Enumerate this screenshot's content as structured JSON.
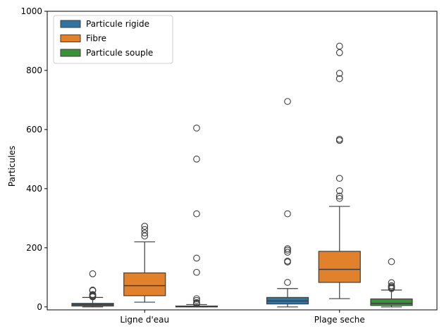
{
  "chart_data": {
    "type": "box",
    "ylabel": "Particules",
    "xlabel": "",
    "ylim": [
      -10,
      1000
    ],
    "yticks": [
      0,
      200,
      400,
      600,
      800,
      1000
    ],
    "categories": [
      "Ligne d'eau",
      "Plage seche"
    ],
    "legend_position": "top-left",
    "series": [
      {
        "name": "Particule rigide",
        "color": "#3274a1",
        "boxes": [
          {
            "category": "Ligne d'eau",
            "whisker_low": 0,
            "q1": 3,
            "median": 8,
            "q3": 12,
            "whisker_high": 32,
            "outliers": [
              112,
              57,
              55,
              42,
              40,
              38,
              35,
              34
            ]
          },
          {
            "category": "Plage seche",
            "whisker_low": 0,
            "q1": 10,
            "median": 20,
            "q3": 32,
            "whisker_high": 62,
            "outliers": [
              695,
              315,
              197,
              192,
              185,
              155,
              152,
              83
            ]
          }
        ]
      },
      {
        "name": "Fibre",
        "color": "#e1812c",
        "boxes": [
          {
            "category": "Ligne d'eau",
            "whisker_low": 16,
            "q1": 38,
            "median": 72,
            "q3": 115,
            "whisker_high": 220,
            "outliers": [
              273,
              262,
              250,
              240
            ]
          },
          {
            "category": "Plage seche",
            "whisker_low": 28,
            "q1": 83,
            "median": 127,
            "q3": 188,
            "whisker_high": 340,
            "outliers": [
              882,
              860,
              790,
              772,
              567,
              563,
              435,
              393,
              375,
              367
            ]
          }
        ]
      },
      {
        "name": "Particule souple",
        "color": "#3a923a",
        "boxes": [
          {
            "category": "Ligne d'eau",
            "whisker_low": 0,
            "q1": 0,
            "median": 1,
            "q3": 3,
            "whisker_high": 8,
            "outliers": [
              605,
              500,
              315,
              165,
              117,
              28,
              22,
              15,
              12,
              10
            ]
          },
          {
            "category": "Plage seche",
            "whisker_low": 0,
            "q1": 5,
            "median": 12,
            "q3": 27,
            "whisker_high": 57,
            "outliers": [
              153,
              82,
              72,
              68,
              65,
              62
            ]
          }
        ]
      }
    ]
  }
}
